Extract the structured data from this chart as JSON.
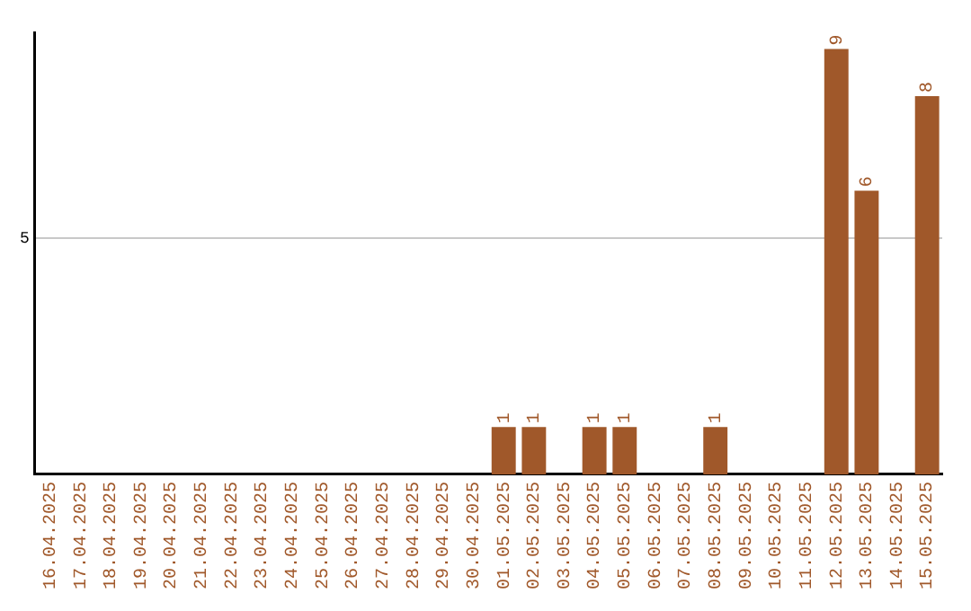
{
  "chart_data": {
    "type": "bar",
    "categories": [
      "16.04.2025",
      "17.04.2025",
      "18.04.2025",
      "19.04.2025",
      "20.04.2025",
      "21.04.2025",
      "22.04.2025",
      "23.04.2025",
      "24.04.2025",
      "25.04.2025",
      "26.04.2025",
      "27.04.2025",
      "28.04.2025",
      "29.04.2025",
      "30.04.2025",
      "01.05.2025",
      "02.05.2025",
      "03.05.2025",
      "04.05.2025",
      "05.05.2025",
      "06.05.2025",
      "07.05.2025",
      "08.05.2025",
      "09.05.2025",
      "10.05.2025",
      "11.05.2025",
      "12.05.2025",
      "13.05.2025",
      "14.05.2025",
      "15.05.2025"
    ],
    "values": [
      null,
      null,
      null,
      null,
      null,
      null,
      null,
      null,
      null,
      null,
      null,
      null,
      null,
      null,
      null,
      1,
      1,
      null,
      1,
      1,
      null,
      null,
      1,
      null,
      null,
      null,
      9,
      6,
      null,
      8
    ],
    "color": "#a0582a",
    "ylim": [
      0,
      9.35
    ],
    "yticks": [
      5
    ],
    "grid": "y",
    "data_labels": true,
    "legend": false
  }
}
